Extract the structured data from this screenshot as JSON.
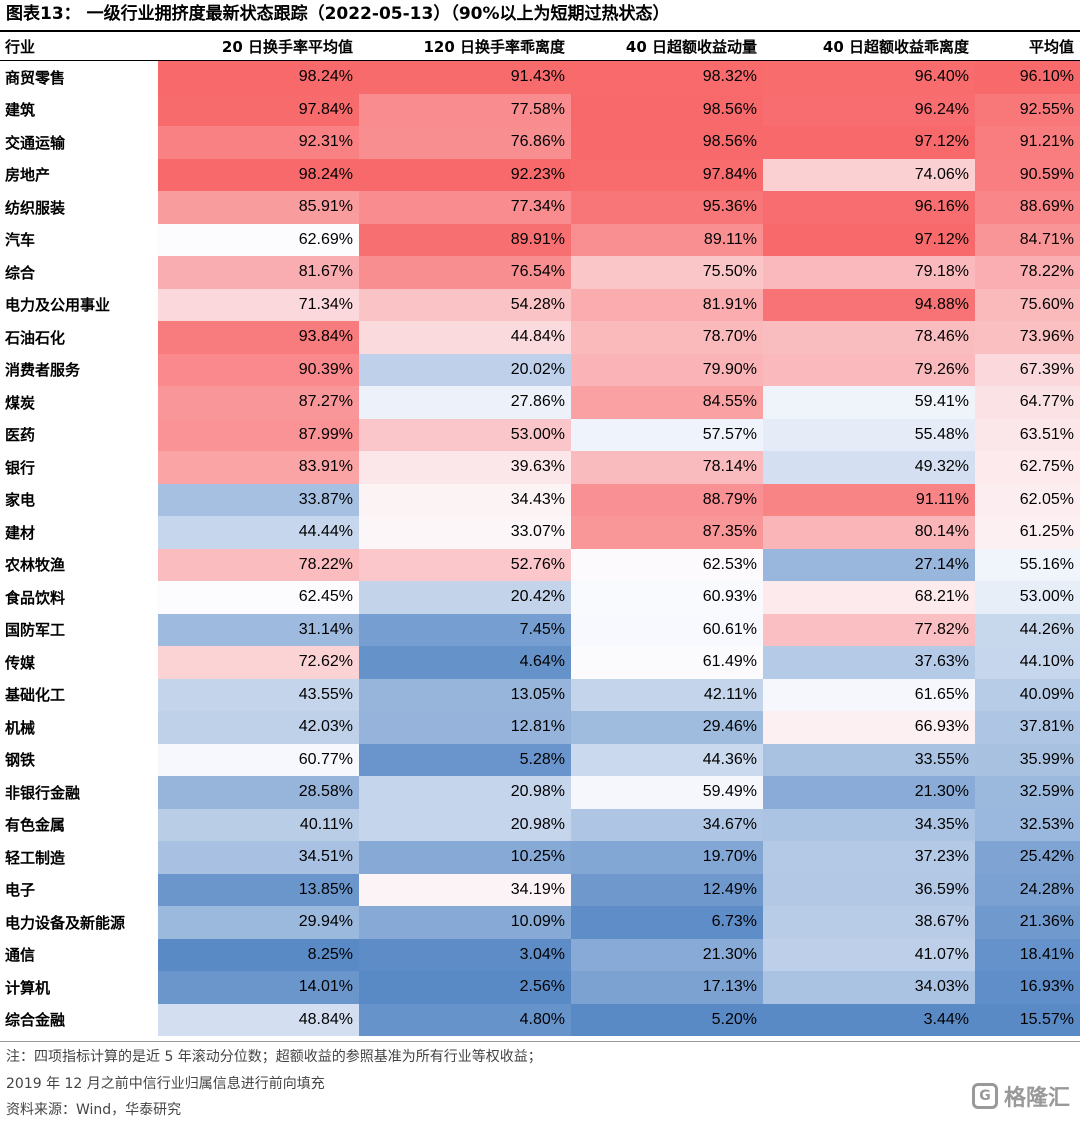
{
  "title": "图表13： 一级行业拥挤度最新状态跟踪（2022-05-13）（90%以上为短期过热状态）",
  "headers": [
    "行业",
    "20 日换手率平均值",
    "120 日换手率乖离度",
    "40 日超额收益动量",
    "40 日超额收益乖离度",
    "平均值"
  ],
  "rows": [
    [
      "商贸零售",
      "98.24%",
      "91.43%",
      "98.32%",
      "96.40%",
      "96.10%"
    ],
    [
      "建筑",
      "97.84%",
      "77.58%",
      "98.56%",
      "96.24%",
      "92.55%"
    ],
    [
      "交通运输",
      "92.31%",
      "76.86%",
      "98.56%",
      "97.12%",
      "91.21%"
    ],
    [
      "房地产",
      "98.24%",
      "92.23%",
      "97.84%",
      "74.06%",
      "90.59%"
    ],
    [
      "纺织服装",
      "85.91%",
      "77.34%",
      "95.36%",
      "96.16%",
      "88.69%"
    ],
    [
      "汽车",
      "62.69%",
      "89.91%",
      "89.11%",
      "97.12%",
      "84.71%"
    ],
    [
      "综合",
      "81.67%",
      "76.54%",
      "75.50%",
      "79.18%",
      "78.22%"
    ],
    [
      "电力及公用事业",
      "71.34%",
      "54.28%",
      "81.91%",
      "94.88%",
      "75.60%"
    ],
    [
      "石油石化",
      "93.84%",
      "44.84%",
      "78.70%",
      "78.46%",
      "73.96%"
    ],
    [
      "消费者服务",
      "90.39%",
      "20.02%",
      "79.90%",
      "79.26%",
      "67.39%"
    ],
    [
      "煤炭",
      "87.27%",
      "27.86%",
      "84.55%",
      "59.41%",
      "64.77%"
    ],
    [
      "医药",
      "87.99%",
      "53.00%",
      "57.57%",
      "55.48%",
      "63.51%"
    ],
    [
      "银行",
      "83.91%",
      "39.63%",
      "78.14%",
      "49.32%",
      "62.75%"
    ],
    [
      "家电",
      "33.87%",
      "34.43%",
      "88.79%",
      "91.11%",
      "62.05%"
    ],
    [
      "建材",
      "44.44%",
      "33.07%",
      "87.35%",
      "80.14%",
      "61.25%"
    ],
    [
      "农林牧渔",
      "78.22%",
      "52.76%",
      "62.53%",
      "27.14%",
      "55.16%"
    ],
    [
      "食品饮料",
      "62.45%",
      "20.42%",
      "60.93%",
      "68.21%",
      "53.00%"
    ],
    [
      "国防军工",
      "31.14%",
      "7.45%",
      "60.61%",
      "77.82%",
      "44.26%"
    ],
    [
      "传媒",
      "72.62%",
      "4.64%",
      "61.49%",
      "37.63%",
      "44.10%"
    ],
    [
      "基础化工",
      "43.55%",
      "13.05%",
      "42.11%",
      "61.65%",
      "40.09%"
    ],
    [
      "机械",
      "42.03%",
      "12.81%",
      "29.46%",
      "66.93%",
      "37.81%"
    ],
    [
      "钢铁",
      "60.77%",
      "5.28%",
      "44.36%",
      "33.55%",
      "35.99%"
    ],
    [
      "非银行金融",
      "28.58%",
      "20.98%",
      "59.49%",
      "21.30%",
      "32.59%"
    ],
    [
      "有色金属",
      "40.11%",
      "20.98%",
      "34.67%",
      "34.35%",
      "32.53%"
    ],
    [
      "轻工制造",
      "34.51%",
      "10.25%",
      "19.70%",
      "37.23%",
      "25.42%"
    ],
    [
      "电子",
      "13.85%",
      "34.19%",
      "12.49%",
      "36.59%",
      "24.28%"
    ],
    [
      "电力设备及新能源",
      "29.94%",
      "10.09%",
      "6.73%",
      "38.67%",
      "21.36%"
    ],
    [
      "通信",
      "8.25%",
      "3.04%",
      "21.30%",
      "41.07%",
      "18.41%"
    ],
    [
      "计算机",
      "14.01%",
      "2.56%",
      "17.13%",
      "34.03%",
      "16.93%"
    ],
    [
      "综合金融",
      "48.84%",
      "4.80%",
      "5.20%",
      "3.44%",
      "15.57%"
    ]
  ],
  "notes": [
    "注：四项指标计算的是近 5 年滚动分位数；超额收益的参照基准为所有行业等权收益；",
    "2019 年 12 月之前中信行业归属信息进行前向填充",
    "资料来源：Wind，华泰研究"
  ],
  "watermark": "格隆汇",
  "colors": {
    "high": "#f8696b",
    "mid": "#fcfcff",
    "low": "#5a8ac6"
  }
}
